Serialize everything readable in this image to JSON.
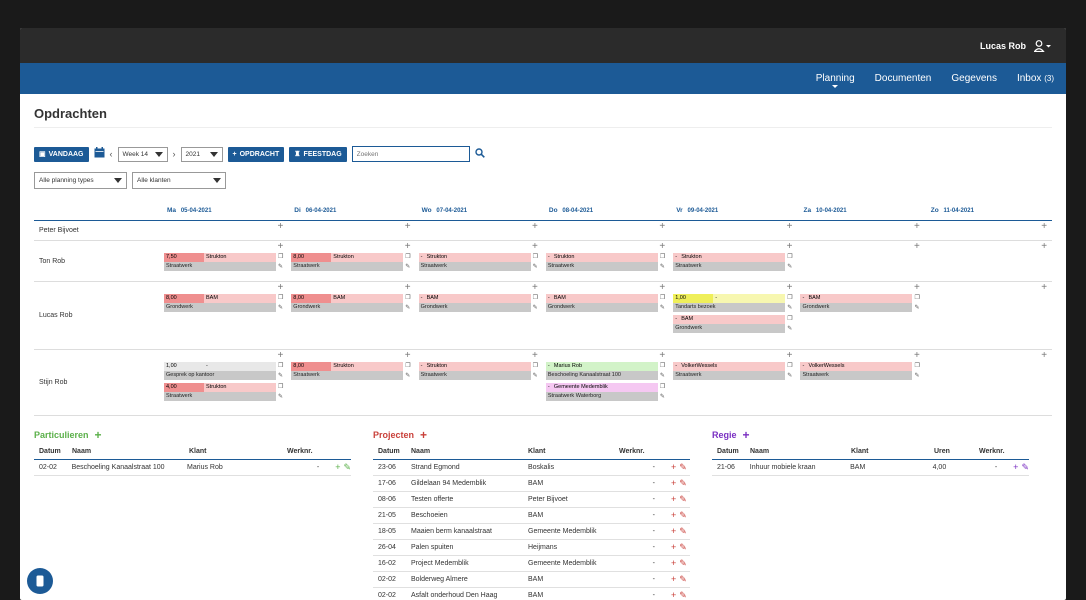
{
  "topbar": {
    "user": "Lucas Rob"
  },
  "nav": [
    {
      "label": "Planning"
    },
    {
      "label": "Documenten"
    },
    {
      "label": "Gegevens"
    },
    {
      "label": "Inbox",
      "count": "(3)"
    }
  ],
  "page_title": "Opdrachten",
  "toolbar": {
    "today": "VANDAAG",
    "week": "Week 14",
    "year": "2021",
    "add": "OPDRACHT",
    "holiday": "FEESTDAG",
    "search_placeholder": "Zoeken"
  },
  "filters": {
    "types": "Alle planning types",
    "clients": "Alle klanten"
  },
  "days": [
    {
      "name": "Ma",
      "date": "05-04-2021"
    },
    {
      "name": "Di",
      "date": "06-04-2021"
    },
    {
      "name": "Wo",
      "date": "07-04-2021"
    },
    {
      "name": "Do",
      "date": "08-04-2021"
    },
    {
      "name": "Vr",
      "date": "09-04-2021"
    },
    {
      "name": "Za",
      "date": "10-04-2021"
    },
    {
      "name": "Zo",
      "date": "11-04-2021"
    }
  ],
  "colors": {
    "red": "#f8c9c9",
    "redh": "#ef8f8f",
    "grey": "#e8e8e8",
    "yellow": "#f7f7b0",
    "yellowh": "#efef5a",
    "green": "#d2f3c8",
    "pink": "#f5c8f2"
  },
  "people": [
    {
      "name": "Peter Bijvoet",
      "h": 20,
      "cells": [
        [],
        [],
        [],
        [],
        [],
        [],
        []
      ]
    },
    {
      "name": "Ton Rob",
      "h": 41,
      "cells": [
        [
          [
            "7,50",
            "Strukton",
            "Straatwerk",
            "red"
          ]
        ],
        [
          [
            "8,00",
            "Strukton",
            "Straatwerk",
            "red"
          ]
        ],
        [
          [
            "-",
            "Strukton",
            "Straatwerk",
            "red"
          ]
        ],
        [
          [
            "-",
            "Strukton",
            "Straatwerk",
            "red"
          ]
        ],
        [
          [
            "-",
            "Strukton",
            "Straatwerk",
            "red"
          ]
        ],
        [],
        []
      ]
    },
    {
      "name": "Lucas Rob",
      "h": 68,
      "cells": [
        [
          [
            "8,00",
            "BAM",
            "Grondwerk",
            "red"
          ]
        ],
        [
          [
            "8,00",
            "BAM",
            "Grondwerk",
            "red"
          ]
        ],
        [
          [
            "-",
            "BAM",
            "Grondwerk",
            "red"
          ]
        ],
        [
          [
            "-",
            "BAM",
            "Grondwerk",
            "red"
          ]
        ],
        [
          [
            "1,00",
            "-",
            "Tandarts bezoek",
            "yellow"
          ],
          [
            "-",
            "BAM",
            "Grondwerk",
            "red"
          ]
        ],
        [
          [
            "-",
            "BAM",
            "Grondwerk",
            "red"
          ]
        ],
        []
      ]
    },
    {
      "name": "Stijn Rob",
      "h": 66,
      "cells": [
        [
          [
            "1,00",
            "-",
            "Gesprek op kantoor",
            "grey"
          ],
          [
            "4,00",
            "Strukton",
            "Straatwerk",
            "red"
          ]
        ],
        [
          [
            "8,00",
            "Strukton",
            "Straatwerk",
            "red"
          ]
        ],
        [
          [
            "-",
            "Strukton",
            "Straatwerk",
            "red"
          ]
        ],
        [
          [
            "-",
            "Marius Rob",
            "Beschoeling Kanaalstraat 100",
            "green"
          ],
          [
            "-",
            "Gemeente Medemblik",
            "Straatwerk Waterborg",
            "pink"
          ]
        ],
        [
          [
            "-",
            "VolkerWessels",
            "Straatwerk",
            "red"
          ]
        ],
        [
          [
            "-",
            "VolkerWessels",
            "Straatwerk",
            "red"
          ]
        ],
        []
      ]
    }
  ],
  "particulieren": {
    "title": "Particulieren",
    "color": "#5bb04a",
    "cols": [
      "Datum",
      "Naam",
      "Klant",
      "Werknr."
    ],
    "rows": [
      [
        "02-02",
        "Beschoeling Kanaalstraat 100",
        "Marius Rob",
        "-"
      ]
    ]
  },
  "projecten": {
    "title": "Projecten",
    "color": "#c9403a",
    "cols": [
      "Datum",
      "Naam",
      "Klant",
      "Werknr."
    ],
    "rows": [
      [
        "23-06",
        "Strand Egmond",
        "Boskalis",
        "-"
      ],
      [
        "17-06",
        "Gildelaan 94 Medemblik",
        "BAM",
        "-"
      ],
      [
        "08-06",
        "Testen offerte",
        "Peter Bijvoet",
        "-"
      ],
      [
        "21-05",
        "Beschoeien",
        "BAM",
        "-"
      ],
      [
        "18-05",
        "Maaien berm kanaalstraat",
        "Gemeente Medemblik",
        "-"
      ],
      [
        "26-04",
        "Palen spuiten",
        "Heijmans",
        "-"
      ],
      [
        "16-02",
        "Project Medemblik",
        "Gemeente Medemblik",
        "-"
      ],
      [
        "02-02",
        "Bolderweg Almere",
        "BAM",
        "-"
      ],
      [
        "02-02",
        "Asfalt onderhoud Den Haag",
        "BAM",
        "-"
      ]
    ]
  },
  "regie": {
    "title": "Regie",
    "color": "#7a2fc2",
    "cols": [
      "Datum",
      "Naam",
      "Klant",
      "Uren",
      "Werknr."
    ],
    "rows": [
      [
        "21-06",
        "Inhuur mobiele kraan",
        "BAM",
        "4,00",
        "-"
      ]
    ]
  }
}
